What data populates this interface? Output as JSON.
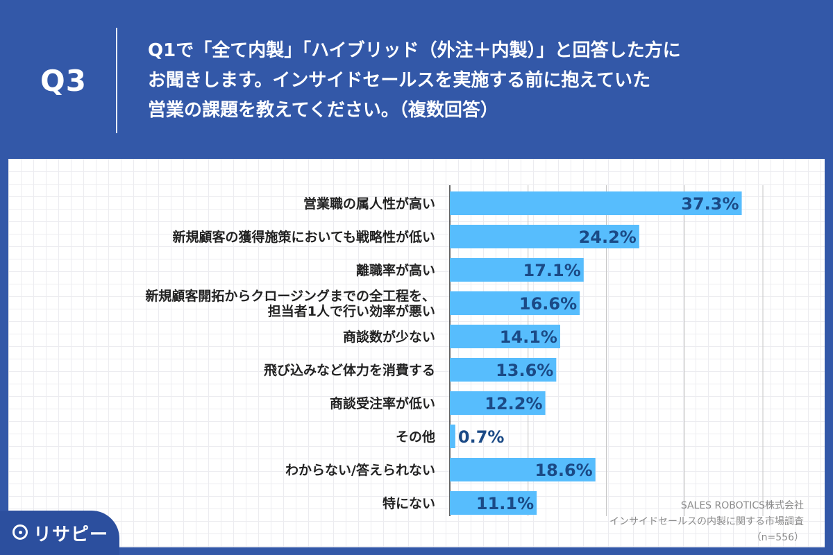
{
  "header": {
    "q_label": "Q3",
    "question_lines": [
      "Q1で「全て内製」「ハイブリッド（外注＋内製）」と回答した方に",
      "お聞きします。インサイドセールスを実施する前に抱えていた",
      "営業の課題を教えてください。（複数回答）"
    ]
  },
  "chart_data": {
    "type": "bar",
    "orientation": "horizontal",
    "categories": [
      [
        "営業職の属人性が高い"
      ],
      [
        "新規顧客の獲得施策においても戦略性が低い"
      ],
      [
        "離職率が高い"
      ],
      [
        "新規顧客開拓からクロージングまでの全工程を、",
        "担当者1人で行い効率が悪い"
      ],
      [
        "商談数が少ない"
      ],
      [
        "飛び込みなど体力を消費する"
      ],
      [
        "商談受注率が低い"
      ],
      [
        "その他"
      ],
      [
        "わからない/答えられない"
      ],
      [
        "特にない"
      ]
    ],
    "values": [
      37.3,
      24.2,
      17.1,
      16.6,
      14.1,
      13.6,
      12.2,
      0.7,
      18.6,
      11.1
    ],
    "value_suffix": "%",
    "xlim": [
      0,
      40
    ],
    "grid": true,
    "bar_color": "#57bdfd",
    "label_color": "#1b4a86"
  },
  "source": {
    "lines": [
      "SALES ROBOTICS株式会社",
      "インサイドセールスの内製に関する市場調査",
      "（n=556）"
    ]
  },
  "logo": {
    "text": "リサピー"
  },
  "colors": {
    "background": "#3358a8",
    "logo_tab": "#2c4f9e"
  }
}
